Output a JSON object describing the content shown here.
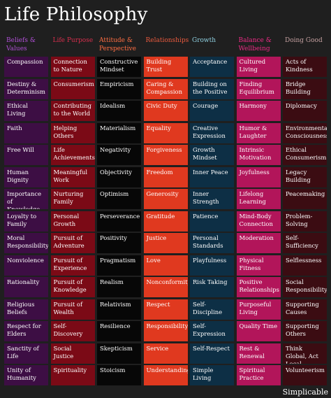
{
  "title": "Life Philosophy",
  "brand": "Simplicable",
  "columns": [
    {
      "header": "Beliefs & Values",
      "items": [
        "Compassion",
        "Destiny & Determinism",
        "Ethical Living",
        "Faith",
        "Free Will",
        "Human Dignity",
        "Importance of Knowledge",
        "Loyalty to Family",
        "Moral Responsibility",
        "Nonviolence",
        "Rationality",
        "Religious Beliefs",
        "Respect for Elders",
        "Sanctity of Life",
        "Unity of Humanity"
      ]
    },
    {
      "header": "Life Purpose",
      "items": [
        "Connection to Nature",
        "Consumerism",
        "Contributing to the World",
        "Helping Others",
        "Life Achievements",
        "Meaningful Work",
        "Nurturing Family",
        "Personal Growth",
        "Pursuit of Adventure",
        "Pursuit of Experience",
        "Pursuit of Knowledge",
        "Pursuit of Wealth",
        "Self-Discovery",
        "Social Justice",
        "Spirituality"
      ]
    },
    {
      "header": "Attitude & Perspective",
      "items": [
        "Constructive Mindset",
        "Empiricism",
        "Idealism",
        "Materialism",
        "Negativity",
        "Objectivity",
        "Optimism",
        "Perseverance",
        "Positivity",
        "Pragmatism",
        "Realism",
        "Relativism",
        "Resilience",
        "Skepticism",
        "Stoicism"
      ]
    },
    {
      "header": "Relationships",
      "items": [
        "Building Trust",
        "Caring & Compassion",
        "Civic Duty",
        "Equality",
        "Forgiveness",
        "Freedom",
        "Generosity",
        "Gratitude",
        "Justice",
        "Love",
        "Nonconformity",
        "Respect",
        "Responsibility",
        "Service",
        "Understanding"
      ]
    },
    {
      "header": "Growth",
      "items": [
        "Acceptance",
        "Building on the Positive",
        "Courage",
        "Creative Expression",
        "Growth Mindset",
        "Inner Peace",
        "Inner Strength",
        "Patience",
        "Personal Standards",
        "Playfulness",
        "Risk Taking",
        "Self-Discipline",
        "Self-Expression",
        "Self-Respect",
        "Simple Living"
      ]
    },
    {
      "header": "Balance & Wellbeing",
      "items": [
        "Cultured Living",
        "Finding Equilibrium",
        "Harmony",
        "Humor & Laughter",
        "Intrinsic Motivation",
        "Joyfulness",
        "Lifelong Learning",
        "Mind-Body Connection",
        "Moderation",
        "Physical Fitness",
        "Positive Relationships",
        "Purposeful Living",
        "Quality Time",
        "Rest & Renewal",
        "Spiritual Practice"
      ]
    },
    {
      "header": "Doing Good",
      "items": [
        "Acts of Kindness",
        "Bridge Building",
        "Diplomacy",
        "Environmental Consciousness",
        "Ethical Consumerism",
        "Legacy Building",
        "Peacemaking",
        "Problem-Solving",
        "Self-Sufficiency",
        "Selflessness",
        "Social Responsibility",
        "Supporting Causes",
        "Supporting Others",
        "Think Global, Act Local",
        "Volunteerism"
      ]
    }
  ]
}
